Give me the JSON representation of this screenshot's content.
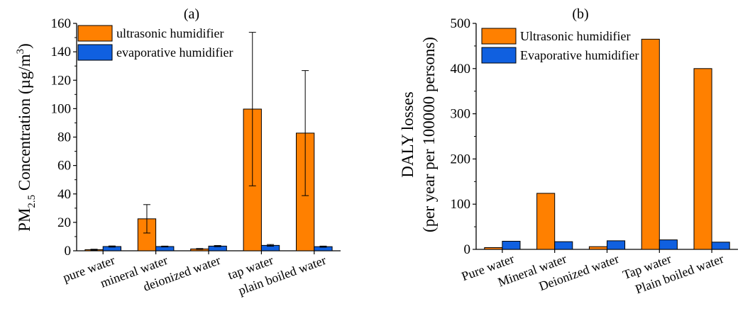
{
  "chart_data": [
    {
      "type": "bar",
      "panel_label": "(a)",
      "ylabel_main": "PM",
      "ylabel_sub": "2.5",
      "ylabel_rest": " Concentration (µg/m",
      "ylabel_sup": "3",
      "ylabel_close": ")",
      "categories": [
        "pure water",
        "mineral water",
        "deionized water",
        "tap water",
        "plain boiled water"
      ],
      "series": [
        {
          "name": "ultrasonic humidifier",
          "color": "#FF8000",
          "values": [
            0.8,
            22.5,
            1.3,
            99.7,
            82.8
          ],
          "error": [
            0.3,
            10,
            0.3,
            54,
            44
          ]
        },
        {
          "name": "evaporative humidifier",
          "color": "#1060E0",
          "values": [
            3.0,
            3.0,
            3.3,
            3.8,
            2.9
          ],
          "error": [
            0.4,
            0.3,
            0.4,
            0.6,
            0.4
          ]
        }
      ],
      "ylim": [
        0,
        160
      ],
      "yticks": [
        0,
        20,
        40,
        60,
        80,
        100,
        120,
        140,
        160
      ],
      "legend_position": "top-left"
    },
    {
      "type": "bar",
      "panel_label": "(b)",
      "ylabel_line1": "DALY losses",
      "ylabel_line2": "(per year per 100000 persons)",
      "categories": [
        "Pure water",
        "Mineral water",
        "Deionized water",
        "Tap water",
        "Plain boiled water"
      ],
      "series": [
        {
          "name": "Ultrasonic humidifier",
          "color": "#FF8000",
          "values": [
            4,
            124,
            6,
            465,
            400
          ]
        },
        {
          "name": "Evaporative humidifier",
          "color": "#1060E0",
          "values": [
            18,
            17,
            19,
            21,
            16
          ]
        }
      ],
      "ylim": [
        0,
        500
      ],
      "yticks": [
        0,
        100,
        200,
        300,
        400,
        500
      ],
      "legend_position": "top-left"
    }
  ]
}
